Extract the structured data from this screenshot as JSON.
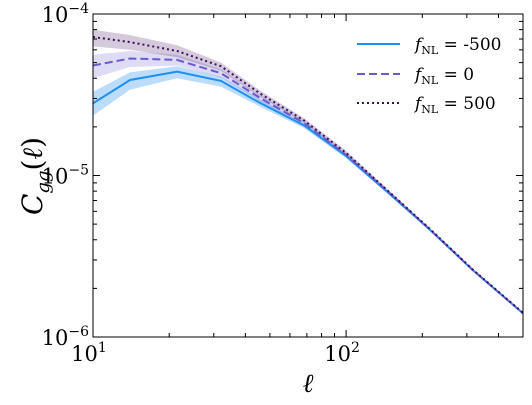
{
  "chart_data": {
    "type": "line",
    "xscale": "log",
    "yscale": "log",
    "xlim": [
      10,
      500
    ],
    "ylim": [
      1e-06,
      0.0001
    ],
    "xlabel": "ℓ",
    "ylabel": "C_gg(ℓ)",
    "x_ticks": [
      {
        "value": 10,
        "base": "10",
        "exp": "1"
      },
      {
        "value": 100,
        "base": "10",
        "exp": "2"
      }
    ],
    "y_ticks": [
      {
        "value": 1e-06,
        "base": "10",
        "exp": "−6"
      },
      {
        "value": 1e-05,
        "base": "10",
        "exp": "−5"
      },
      {
        "value": 0.0001,
        "base": "10",
        "exp": "−4"
      }
    ],
    "legend_position": "top-right",
    "series": [
      {
        "name": "f_NL = -500",
        "legend_value": "-500",
        "color": "#1f8ef1",
        "style": "solid",
        "x": [
          10,
          14,
          21.5,
          32,
          46,
          68,
          100,
          147,
          215,
          316,
          464,
          500
        ],
        "y": [
          2.8e-05,
          3.9e-05,
          4.4e-05,
          3.85e-05,
          2.8e-05,
          2.05e-05,
          1.32e-05,
          7.8e-06,
          4.6e-06,
          2.6e-06,
          1.55e-06,
          1.4e-06
        ],
        "band_low": [
          2.35e-05,
          3.4e-05,
          4e-05,
          3.55e-05,
          2.65e-05,
          1.97e-05,
          1.28e-05,
          7.65e-06,
          4.55e-06,
          2.58e-06,
          1.54e-06,
          1.39e-06
        ],
        "band_high": [
          3.3e-05,
          4.35e-05,
          4.75e-05,
          4.1e-05,
          2.95e-05,
          2.13e-05,
          1.36e-05,
          7.95e-06,
          4.65e-06,
          2.62e-06,
          1.56e-06,
          1.41e-06
        ]
      },
      {
        "name": "f_NL = 0",
        "legend_value": "0",
        "color": "#6a5acd",
        "style": "dashed",
        "x": [
          10,
          14,
          21.5,
          32,
          46,
          68,
          100,
          147,
          215,
          316,
          464,
          500
        ],
        "y": [
          4.8e-05,
          5.3e-05,
          5.2e-05,
          4.3e-05,
          3e-05,
          2.12e-05,
          1.34e-05,
          7.9e-06,
          4.62e-06,
          2.61e-06,
          1.55e-06,
          1.4e-06
        ],
        "band_low": [
          4e-05,
          4.7e-05,
          4.8e-05,
          4.05e-05,
          2.87e-05,
          2.05e-05,
          1.3e-05,
          7.75e-06,
          4.57e-06,
          2.59e-06,
          1.54e-06,
          1.39e-06
        ],
        "band_high": [
          5.6e-05,
          5.9e-05,
          5.6e-05,
          4.55e-05,
          3.13e-05,
          2.19e-05,
          1.38e-05,
          8.05e-06,
          4.67e-06,
          2.63e-06,
          1.56e-06,
          1.41e-06
        ]
      },
      {
        "name": "f_NL = 500",
        "legend_value": "500",
        "color": "#3b0f5e",
        "style": "dotted",
        "x": [
          10,
          14,
          21.5,
          32,
          46,
          68,
          100,
          147,
          215,
          316,
          464,
          500
        ],
        "y": [
          7.2e-05,
          6.7e-05,
          5.9e-05,
          4.75e-05,
          3.2e-05,
          2.2e-05,
          1.38e-05,
          8e-06,
          4.65e-06,
          2.62e-06,
          1.56e-06,
          1.41e-06
        ],
        "band_low": [
          6.3e-05,
          6e-05,
          5.4e-05,
          4.45e-05,
          3.06e-05,
          2.13e-05,
          1.34e-05,
          7.85e-06,
          4.6e-06,
          2.6e-06,
          1.55e-06,
          1.4e-06
        ],
        "band_high": [
          8e-05,
          7.4e-05,
          6.4e-05,
          5e-05,
          3.34e-05,
          2.27e-05,
          1.42e-05,
          8.15e-06,
          4.7e-06,
          2.64e-06,
          1.57e-06,
          1.42e-06
        ]
      }
    ]
  }
}
